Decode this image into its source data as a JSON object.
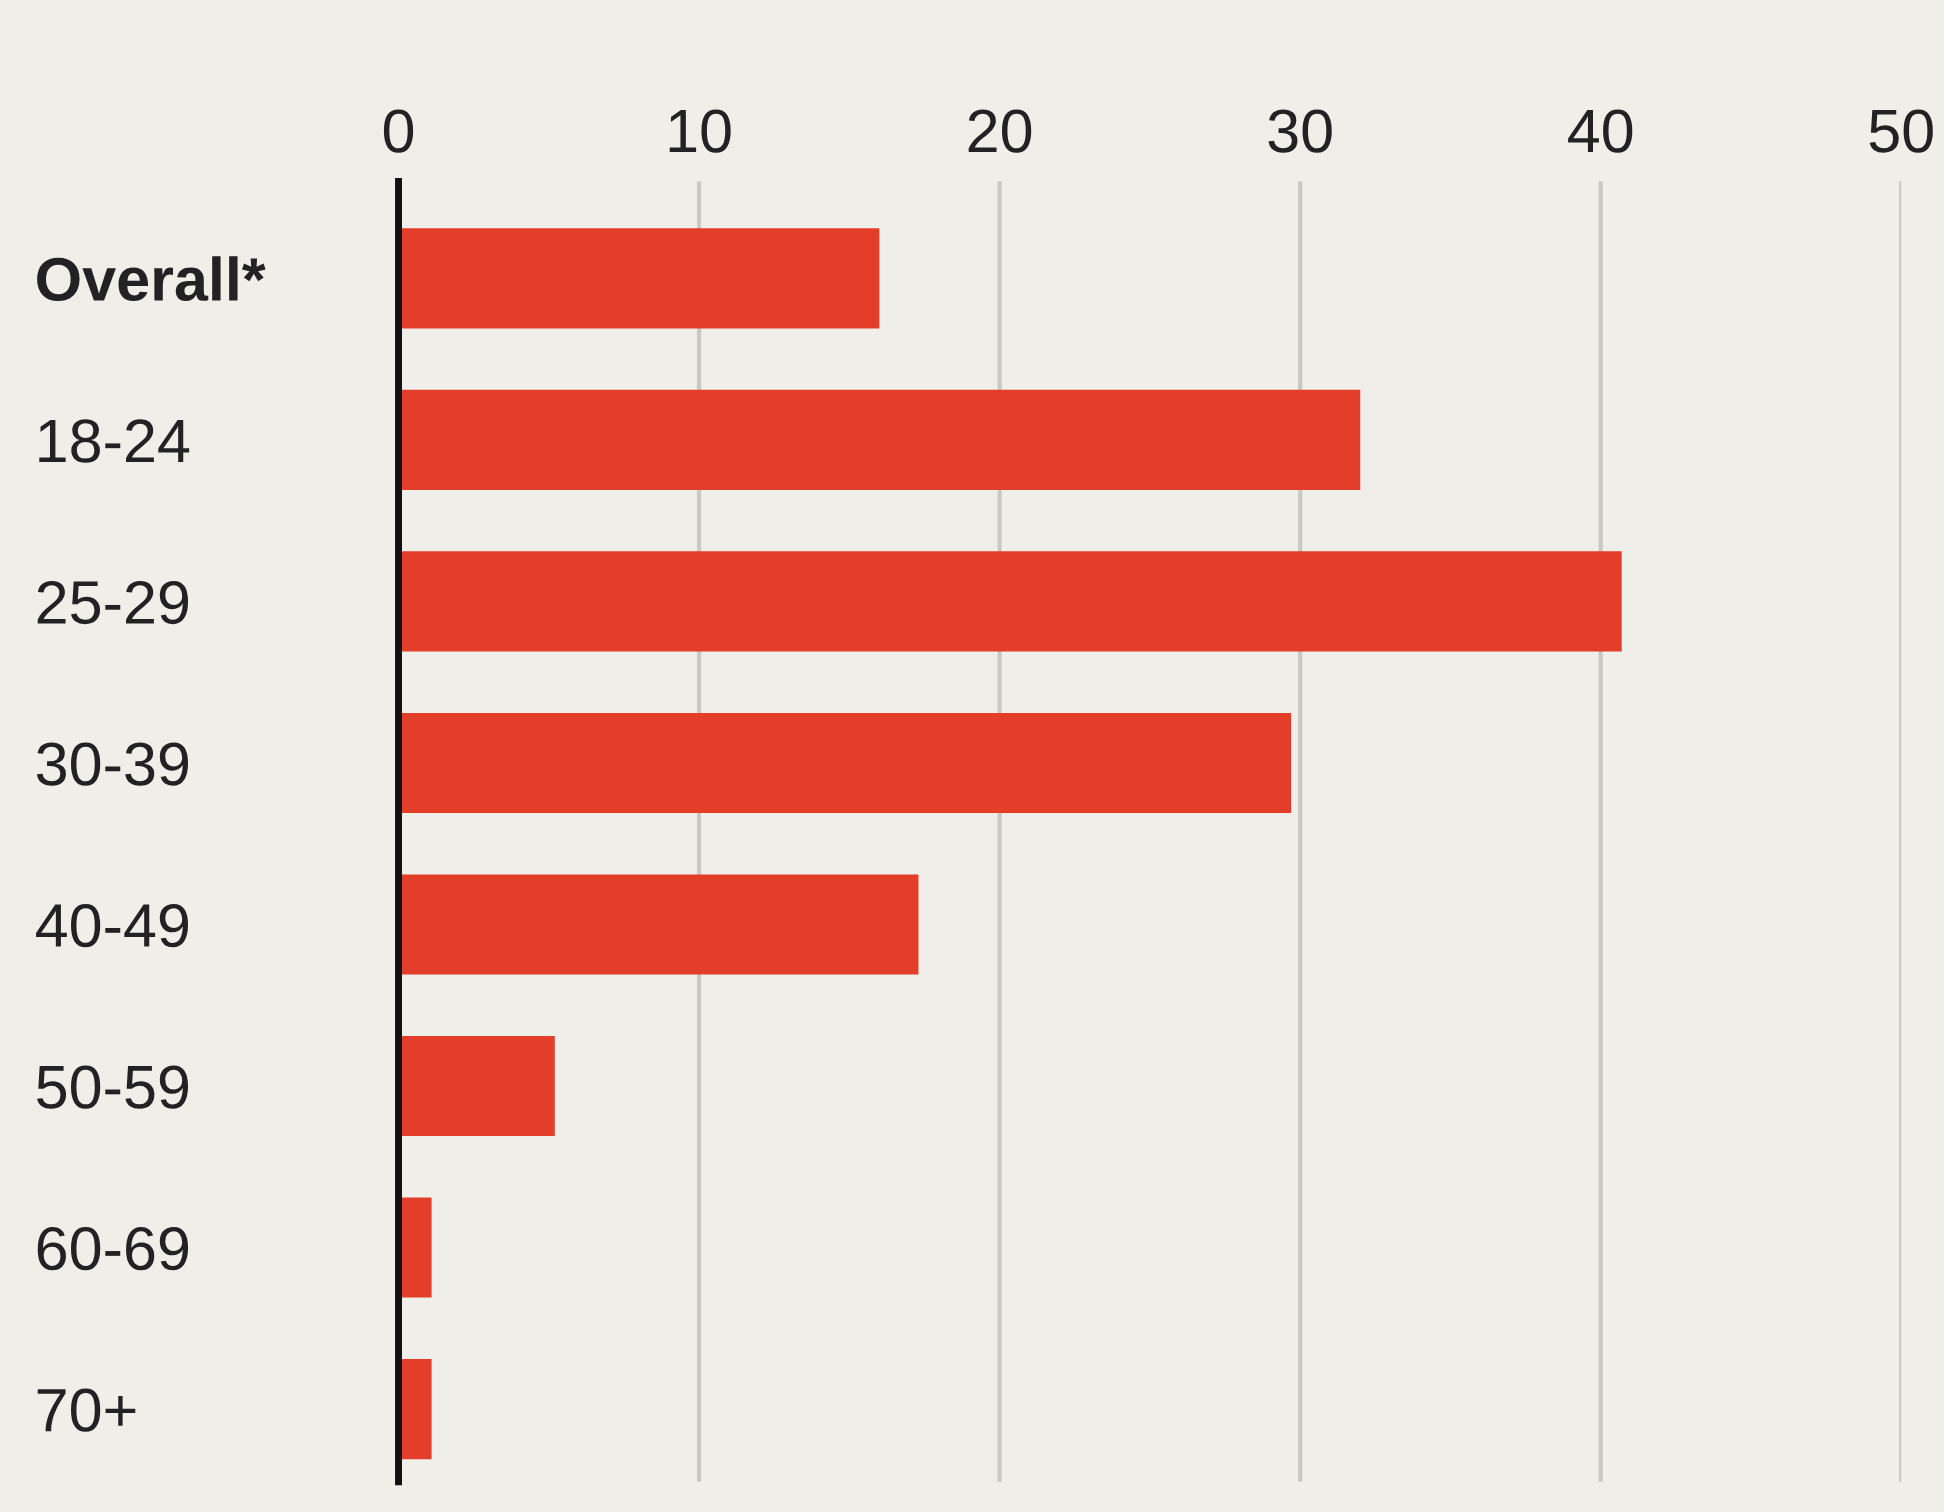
{
  "chart_data": {
    "type": "bar",
    "orientation": "horizontal",
    "categories": [
      "Overall*",
      "18-24",
      "25-29",
      "30-39",
      "40-49",
      "50-59",
      "60-69",
      "70+"
    ],
    "values": [
      16,
      32,
      40.7,
      29.7,
      17.3,
      5.2,
      1.1,
      1.1
    ],
    "color": "#e23e2a",
    "xlim": [
      0,
      50
    ],
    "xticks": [
      0,
      10,
      20,
      30,
      40,
      50
    ],
    "grid": "x"
  }
}
